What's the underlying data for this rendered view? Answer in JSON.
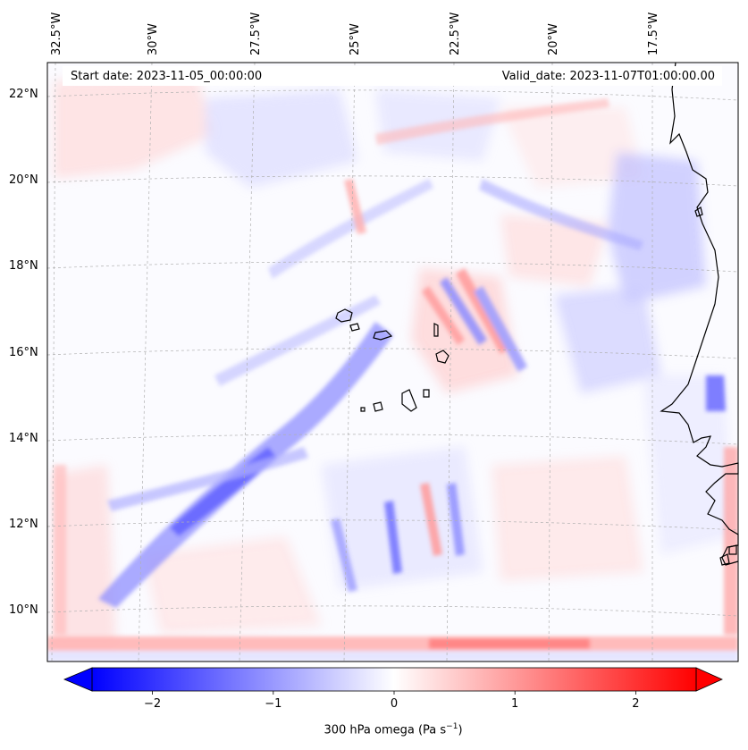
{
  "map": {
    "type": "contourf",
    "projection": "lambert-conformal",
    "variable": "300 hPa omega",
    "colormap": "bwr",
    "extend": "both",
    "lon_ticks": [
      "32.5°W",
      "30°W",
      "27.5°W",
      "25°W",
      "22.5°W",
      "20°W",
      "17.5°W"
    ],
    "lat_ticks": [
      "22°N",
      "20°N",
      "18°N",
      "16°N",
      "14°N",
      "12°N",
      "10°N"
    ],
    "start_date_text": "Start date: 2023-11-05_00:00:00",
    "valid_date_text": "Valid_date: 2023-11-07T01:00:00.00",
    "gridlines": true
  },
  "colorbar": {
    "vmin": -2.5,
    "vmax": 2.5,
    "tick_values": [
      -2,
      -1,
      0,
      1,
      2
    ],
    "tick_labels": [
      "−2",
      "−1",
      "0",
      "1",
      "2"
    ],
    "label_main": "300 hPa omega (Pa s",
    "label_sup": "−1",
    "label_tail": ")",
    "colors": {
      "negative": "#0000ff",
      "zero": "#ffffff",
      "positive": "#ff0000"
    }
  }
}
